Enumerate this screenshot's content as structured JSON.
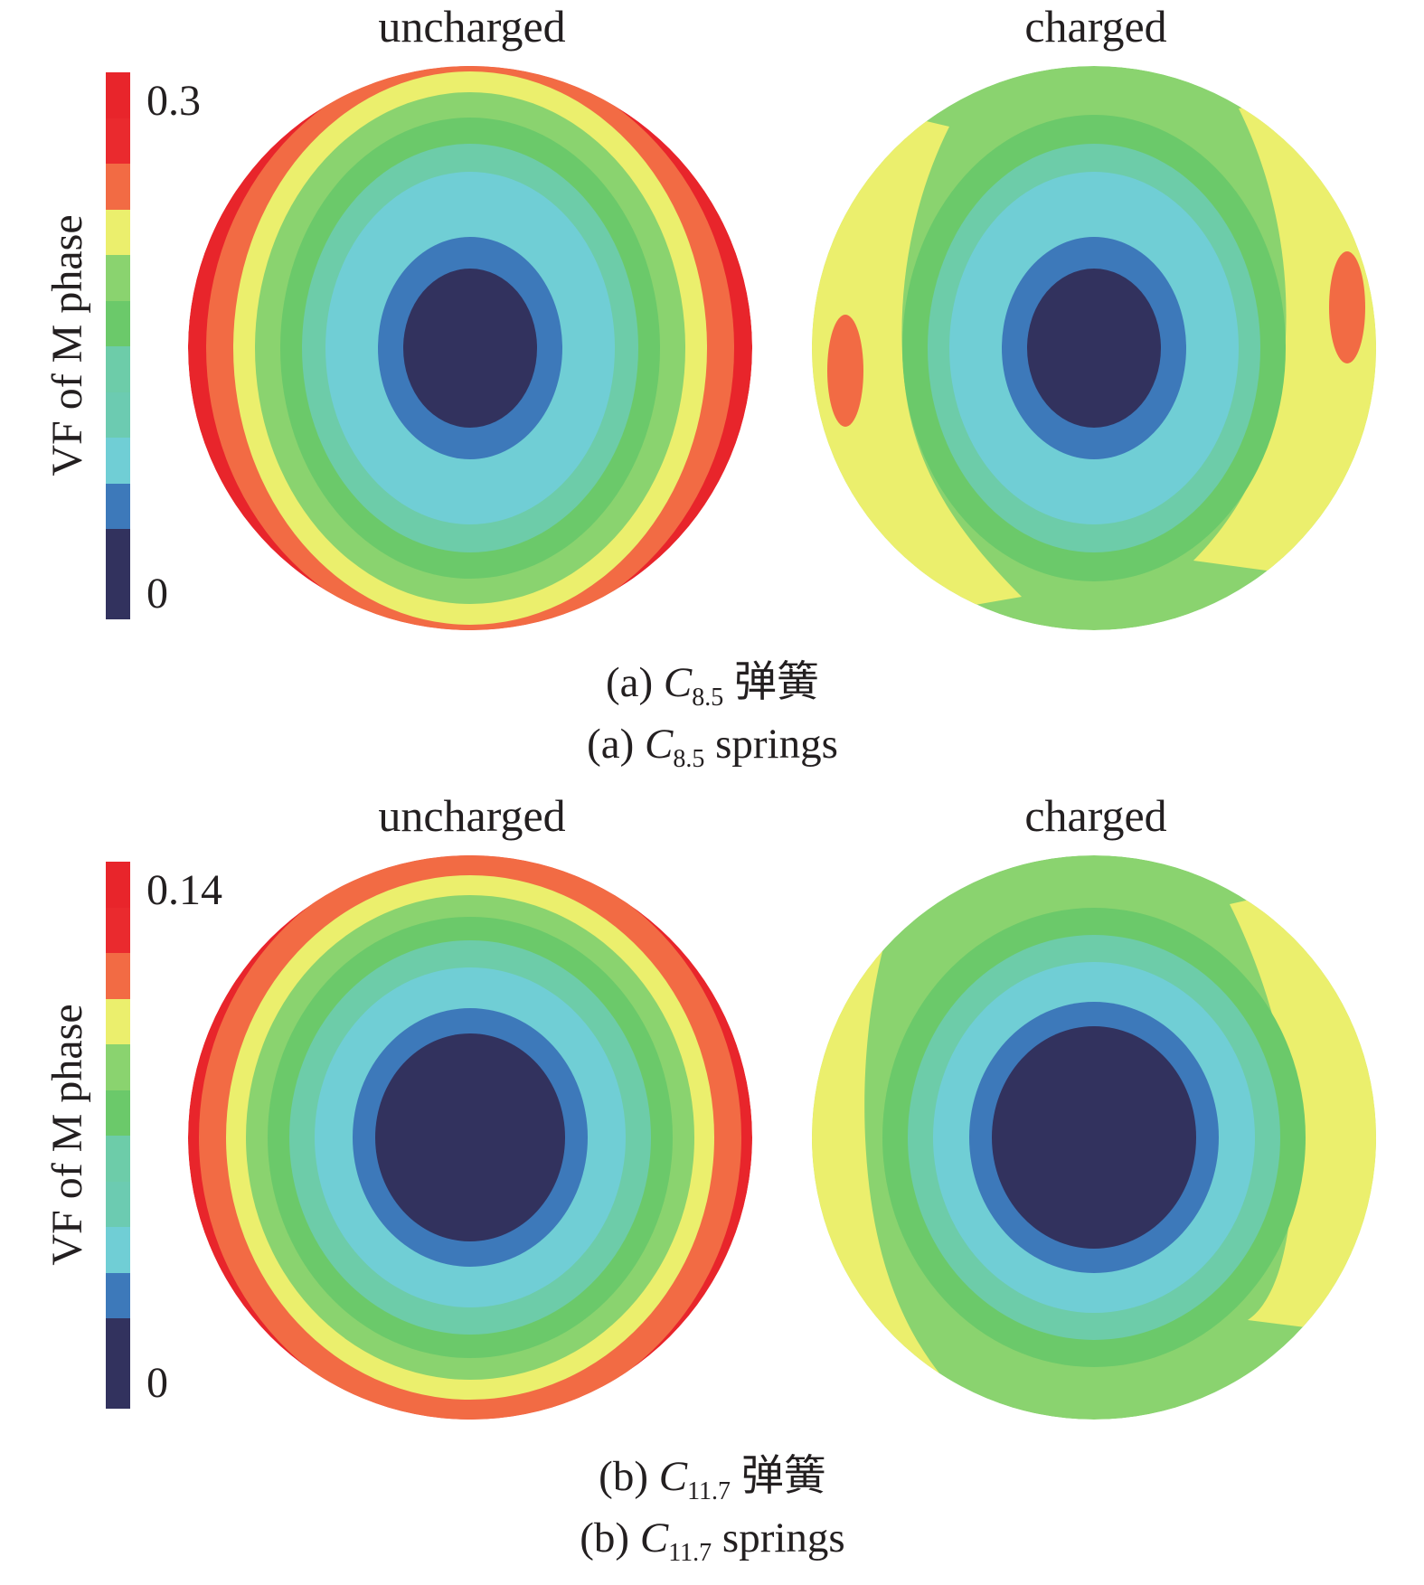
{
  "colormap": [
    "#32325e",
    "#3d79ba",
    "#70ced5",
    "#6dcca9",
    "#6ac97f",
    "#6bc96a",
    "#8ad36f",
    "#ebef6d",
    "#f26b44",
    "#ea2a2e",
    "#e8252b"
  ],
  "colorbar_label": "VF of M phase",
  "panels": [
    {
      "id": "a",
      "colorbar": {
        "max_label": "0.3",
        "min_label": "0"
      },
      "left_title": "uncharged",
      "right_title": "charged",
      "caption_cn": {
        "prefix": "(a) ",
        "sym": "C",
        "sub": "8.5",
        "suffix": " 弹簧"
      },
      "caption_en": {
        "prefix": "(a) ",
        "sym": "C",
        "sub": "8.5",
        "suffix": " springs"
      }
    },
    {
      "id": "b",
      "colorbar": {
        "max_label": "0.14",
        "min_label": "0"
      },
      "left_title": "uncharged",
      "right_title": "charged",
      "caption_cn": {
        "prefix": "(b) ",
        "sym": "C",
        "sub": "11.7",
        "suffix": " 弹簧"
      },
      "caption_en": {
        "prefix": "(b) ",
        "sym": "C",
        "sub": "11.7",
        "suffix": " springs"
      }
    }
  ]
}
